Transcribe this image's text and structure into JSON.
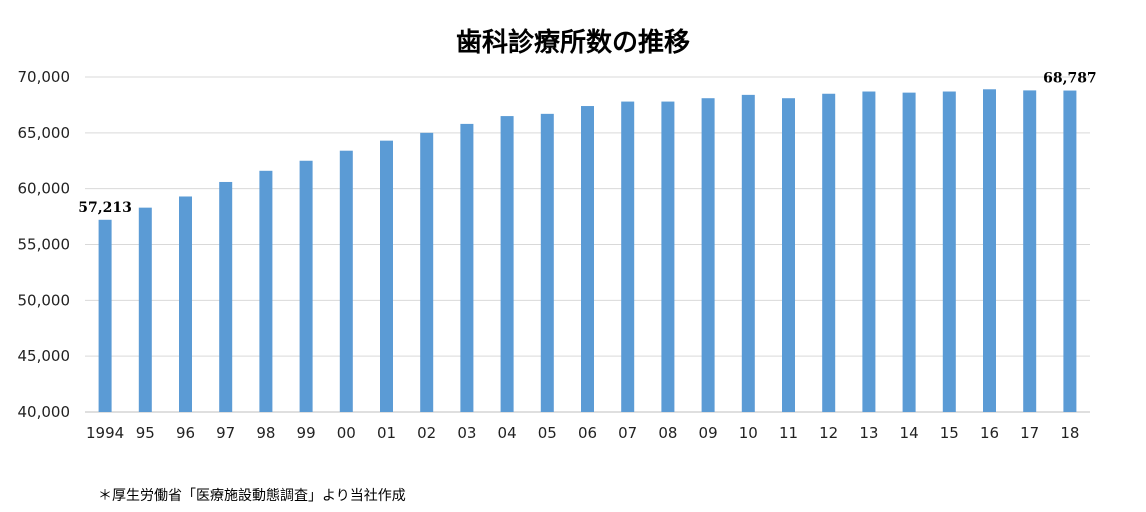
{
  "chart_data": {
    "type": "bar",
    "title": "歯科診療所数の推移",
    "categories": [
      "1994",
      "95",
      "96",
      "97",
      "98",
      "99",
      "00",
      "01",
      "02",
      "03",
      "04",
      "05",
      "06",
      "07",
      "08",
      "09",
      "10",
      "11",
      "12",
      "13",
      "14",
      "15",
      "16",
      "17",
      "18"
    ],
    "series": [
      {
        "values": [
          57213,
          58300,
          59300,
          60600,
          61600,
          62500,
          63400,
          64300,
          65000,
          65800,
          66500,
          66700,
          67400,
          67800,
          67800,
          68100,
          68400,
          68100,
          68500,
          68700,
          68600,
          68700,
          68900,
          68800,
          68787
        ],
        "color": "#5b9bd5"
      }
    ],
    "data_labels": [
      {
        "category": "1994",
        "text": "57,213"
      },
      {
        "category": "18",
        "text": "68,787"
      }
    ],
    "yticks": [
      "40,000",
      "45,000",
      "50,000",
      "55,000",
      "60,000",
      "65,000",
      "70,000"
    ],
    "ylim": [
      40000,
      70000
    ],
    "grid": true,
    "legend": "none",
    "xlabel": "",
    "ylabel": ""
  },
  "footnote": "＊厚生労働省「医療施設動態調査」より当社作成"
}
